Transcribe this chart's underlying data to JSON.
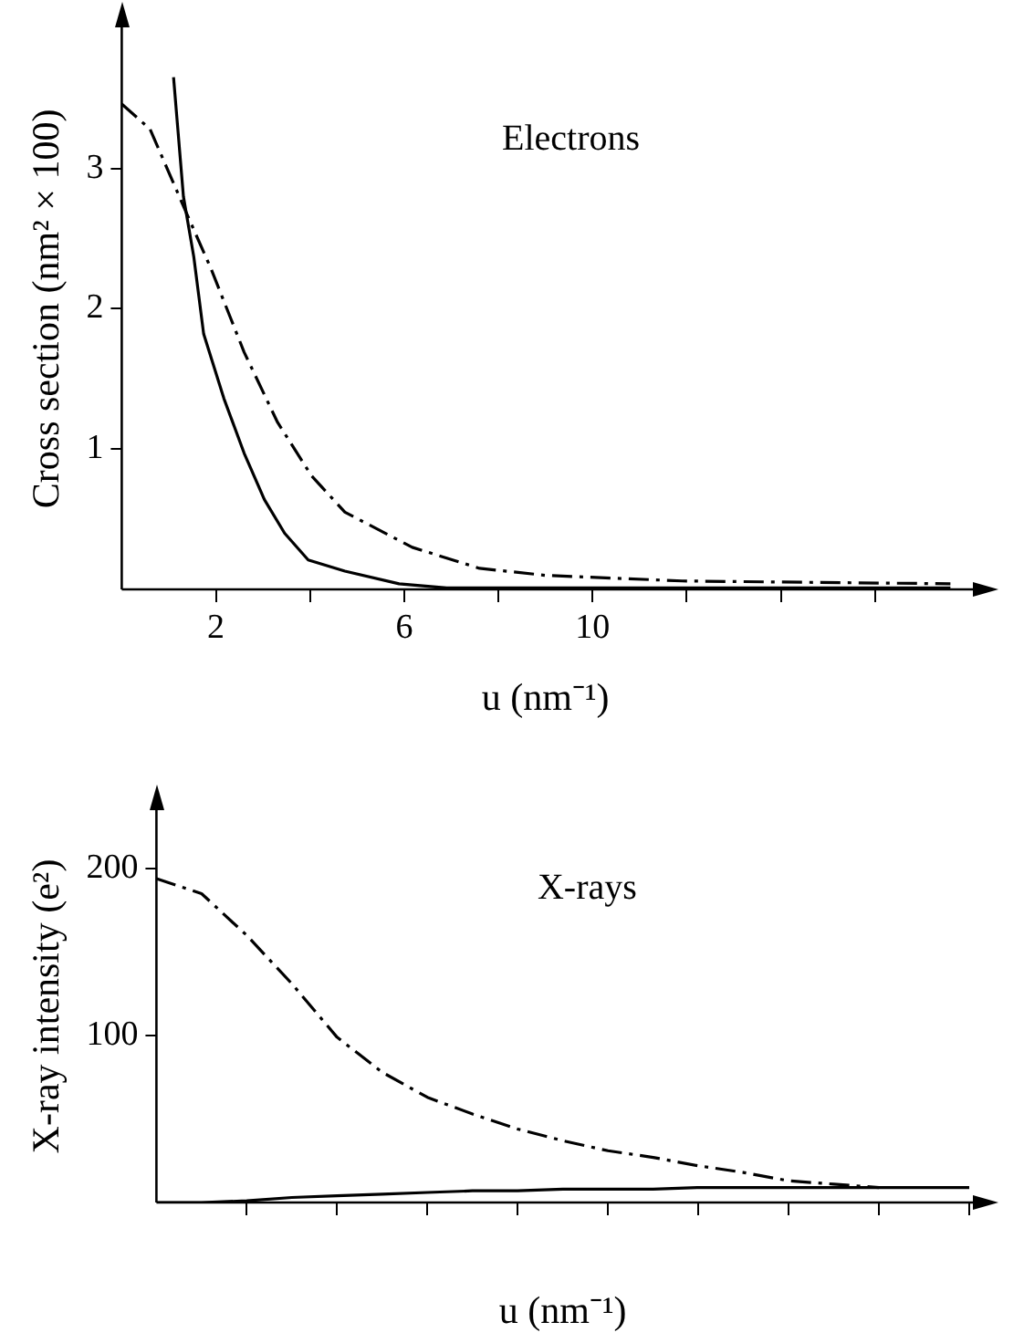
{
  "chart_data": [
    {
      "type": "line",
      "title": "Electrons",
      "xlabel": "u (nm⁻¹)",
      "ylabel": "Cross section (nm² × 100)",
      "xlim": [
        0,
        18
      ],
      "xticks": [
        {
          "value": 2,
          "label": "2"
        },
        {
          "value": 4,
          "label": null
        },
        {
          "value": 6,
          "label": "6"
        },
        {
          "value": 8,
          "label": null
        },
        {
          "value": 10,
          "label": "10"
        },
        {
          "value": 12,
          "label": null
        },
        {
          "value": 14,
          "label": null
        },
        {
          "value": 16,
          "label": null
        }
      ],
      "ylim": [
        0,
        4
      ],
      "yticks": [
        1,
        2,
        3
      ],
      "grid": false,
      "legend": false,
      "series": [
        {
          "color": "#000000",
          "line_style": "solid",
          "x": [
            1.1,
            1.31,
            1.53,
            1.74,
            2.17,
            2.6,
            3.03,
            3.46,
            3.96,
            4.74,
            5.89,
            6.9,
            9,
            12,
            15,
            17.6
          ],
          "values": [
            3.65,
            2.8,
            2.37,
            1.82,
            1.36,
            0.97,
            0.64,
            0.4,
            0.21,
            0.13,
            0.04,
            0.01,
            0.01,
            0.01,
            0.01,
            0.01
          ]
        },
        {
          "color": "#000000",
          "line_style": "dashdot",
          "x": [
            0,
            0.6,
            1.17,
            1.39,
            1.89,
            2.6,
            3.31,
            4.03,
            4.74,
            6.17,
            7.6,
            9,
            11.9,
            14.7,
            17.6
          ],
          "values": [
            3.46,
            3.28,
            2.84,
            2.67,
            2.29,
            1.69,
            1.19,
            0.81,
            0.55,
            0.3,
            0.15,
            0.1,
            0.06,
            0.05,
            0.04
          ]
        }
      ]
    },
    {
      "type": "line",
      "title": "X-rays",
      "xlabel": "u (nm⁻¹)",
      "ylabel": "X-ray intensity (e²)",
      "categories": [
        null,
        null,
        null,
        null,
        null,
        null,
        null,
        null,
        null,
        null,
        null,
        null,
        null,
        null,
        null,
        null,
        null,
        null,
        null
      ],
      "ylim": [
        0,
        235
      ],
      "yticks": [
        100,
        200
      ],
      "grid": false,
      "legend": false,
      "series": [
        {
          "color": "#000000",
          "line_style": "solid",
          "values": [
            0,
            0,
            1,
            3,
            4,
            5,
            6,
            7,
            7,
            8,
            8,
            8,
            9,
            9,
            9,
            9,
            9,
            9,
            9
          ]
        },
        {
          "color": "#000000",
          "line_style": "dashdot",
          "values": [
            194,
            185,
            160,
            131,
            99,
            78,
            63,
            53,
            44,
            37,
            31,
            27,
            22,
            18,
            13,
            11,
            9,
            null,
            null
          ]
        }
      ]
    }
  ]
}
